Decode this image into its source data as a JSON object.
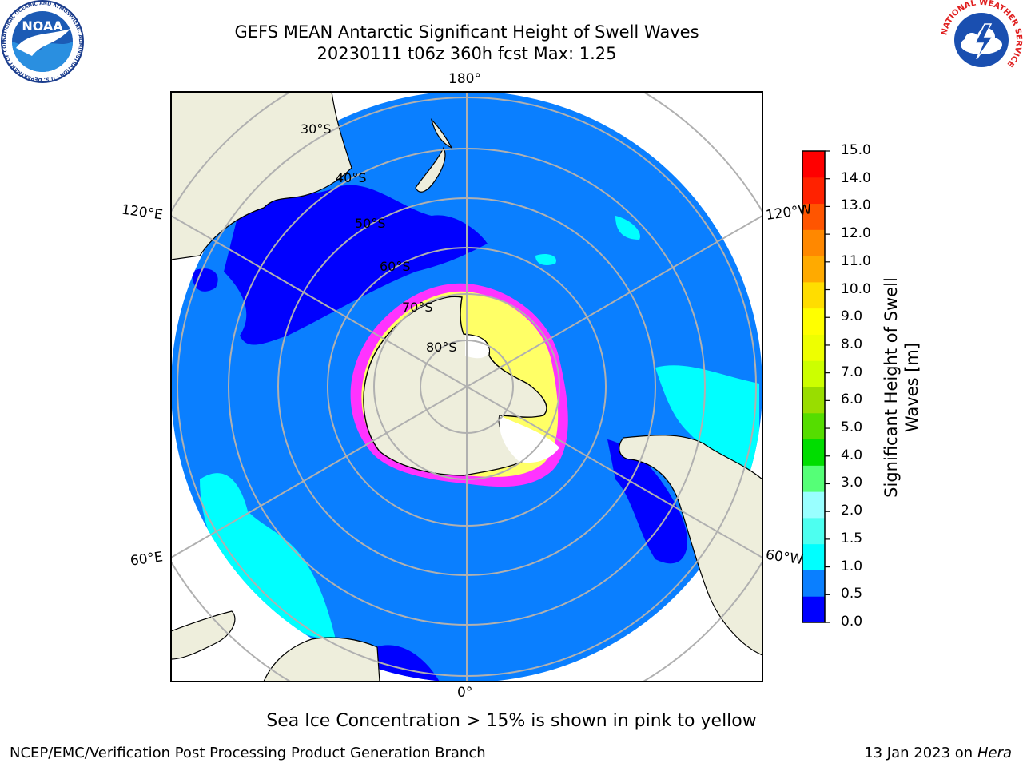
{
  "title": {
    "line1": "GEFS MEAN Antarctic Significant Height of Swell Waves",
    "line2": "20230111 t06z 360h fcst   Max: 1.25"
  },
  "map": {
    "projection": "south polar stereographic",
    "longitude_labels": [
      "180°",
      "120°E",
      "120°W",
      "60°E",
      "60°W",
      "0°"
    ],
    "latitude_labels": [
      "30°S",
      "40°S",
      "50°S",
      "60°S",
      "70°S",
      "80°S"
    ],
    "colors": {
      "land": "#eeeedc",
      "ocean_0_0.5": "#0000ff",
      "ocean_0.5_1.0": "#0a7fff",
      "ocean_1.0_1.5": "#00ffff",
      "sea_ice_low": "#ff33ff",
      "sea_ice_high": "#ffff66",
      "grid": "#b0b0b0"
    }
  },
  "colorbar": {
    "title": "Significant Height of Swell Waves [m]",
    "ticks": [
      "15.0",
      "14.0",
      "13.0",
      "12.0",
      "11.0",
      "10.0",
      "9.0",
      "8.0",
      "7.0",
      "6.0",
      "5.0",
      "4.0",
      "3.0",
      "2.0",
      "1.5",
      "1.0",
      "0.5",
      "0.0"
    ],
    "colors": [
      "#0000ff",
      "#0a7fff",
      "#00ffff",
      "#4dfff0",
      "#99ffff",
      "#55ff77",
      "#00dd00",
      "#55dd00",
      "#99dd00",
      "#ccff00",
      "#eeff00",
      "#ffff00",
      "#ffdd00",
      "#ffaa00",
      "#ff8800",
      "#ff5500",
      "#ff2200",
      "#ff0000"
    ]
  },
  "note": "Sea Ice Concentration > 15% is shown in pink to yellow",
  "footer": {
    "left": "NCEP/EMC/Verification Post Processing Product Generation Branch",
    "right_prefix": "13 Jan 2023 on ",
    "right_italic": "Hera"
  },
  "logos": {
    "noaa_text": "NOAA",
    "noaa_ring": "NATIONAL OCEANIC AND ATMOSPHERIC ADMINISTRATION · U.S. DEPARTMENT OF COMMERCE",
    "nws_ring": "NATIONAL WEATHER SERVICE"
  }
}
